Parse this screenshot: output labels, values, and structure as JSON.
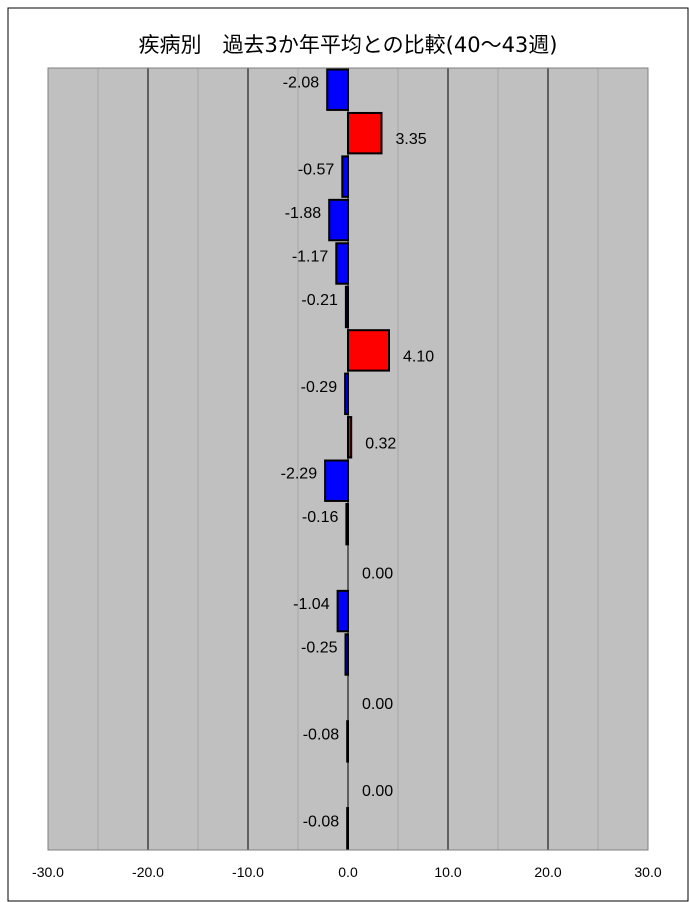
{
  "chart_data": {
    "type": "bar",
    "orientation": "horizontal",
    "title": "疾病別　過去3か年平均との比較(40〜43週)",
    "xlabel": "",
    "ylabel": "",
    "xlim": [
      -30,
      30
    ],
    "x_ticks": [
      "-30.0",
      "-20.0",
      "-10.0",
      "0.0",
      "10.0",
      "20.0",
      "30.0"
    ],
    "major_gridlines": true,
    "minor_gridlines": true,
    "plot_background": "#c0c0c0",
    "positive_color": "#ff0000",
    "negative_color": "#0000ff",
    "categories": [
      "",
      "",
      "",
      "",
      "",
      "",
      "",
      "",
      "",
      "",
      "",
      "",
      "",
      "",
      "",
      "",
      "",
      ""
    ],
    "values": [
      -2.08,
      3.35,
      -0.57,
      -1.88,
      -1.17,
      -0.21,
      4.1,
      -0.29,
      0.32,
      -2.29,
      -0.16,
      0.0,
      -1.04,
      -0.25,
      0.0,
      -0.08,
      0.0,
      -0.08
    ],
    "value_labels": [
      "-2.08",
      "3.35",
      "-0.57",
      "-1.88",
      "-1.17",
      "-0.21",
      "4.10",
      "-0.29",
      "0.32",
      "-2.29",
      "-0.16",
      "0.00",
      "-1.04",
      "-0.25",
      "0.00",
      "-0.08",
      "0.00",
      "-0.08"
    ]
  }
}
